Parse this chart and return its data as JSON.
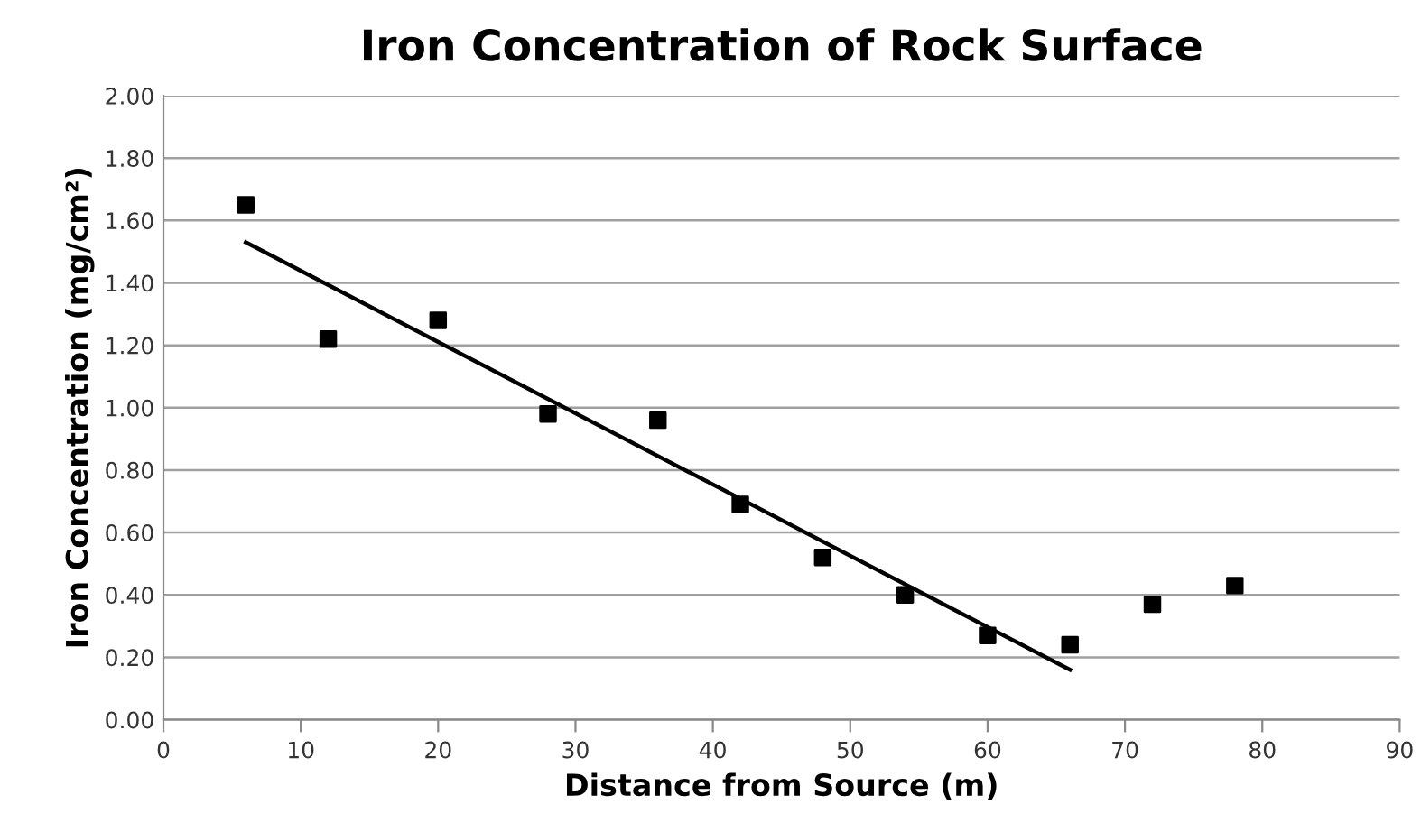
{
  "chart_data": {
    "type": "scatter",
    "title": "Iron Concentration of Rock Surface",
    "xlabel": "Distance from Source (m)",
    "ylabel": "Iron Concentration (mg/cm²)",
    "xlim": [
      0,
      90
    ],
    "xticks": [
      0,
      10,
      20,
      30,
      40,
      50,
      60,
      70,
      80,
      90
    ],
    "ylim": [
      0,
      2
    ],
    "yticks": [
      {
        "value": 0,
        "label": "0.00"
      },
      {
        "value": 0.2,
        "label": "0.20"
      },
      {
        "value": 0.4,
        "label": "0.40"
      },
      {
        "value": 0.6,
        "label": "0.60"
      },
      {
        "value": 0.8,
        "label": "0.80"
      },
      {
        "value": 1.0,
        "label": "1.00"
      },
      {
        "value": 1.2,
        "label": "1.20"
      },
      {
        "value": 1.4,
        "label": "1.40"
      },
      {
        "value": 1.6,
        "label": "1.60"
      },
      {
        "value": 1.8,
        "label": "1.80"
      },
      {
        "value": 2.0,
        "label": "2.00"
      }
    ],
    "grid": "y",
    "legend": false,
    "series": [
      {
        "type": "scatter",
        "color": "#000000",
        "marker": "square",
        "x": [
          6,
          12,
          20,
          28,
          36,
          42,
          48,
          54,
          60,
          66,
          72,
          78
        ],
        "values": [
          1.65,
          1.22,
          1.28,
          0.98,
          0.96,
          0.69,
          0.52,
          0.4,
          0.27,
          0.24,
          0.37,
          0.43
        ]
      },
      {
        "type": "line",
        "color": "#000000",
        "marker": "none",
        "line_style": "solid",
        "x": [
          6,
          66
        ],
        "values": [
          1.53,
          0.16
        ]
      }
    ]
  }
}
